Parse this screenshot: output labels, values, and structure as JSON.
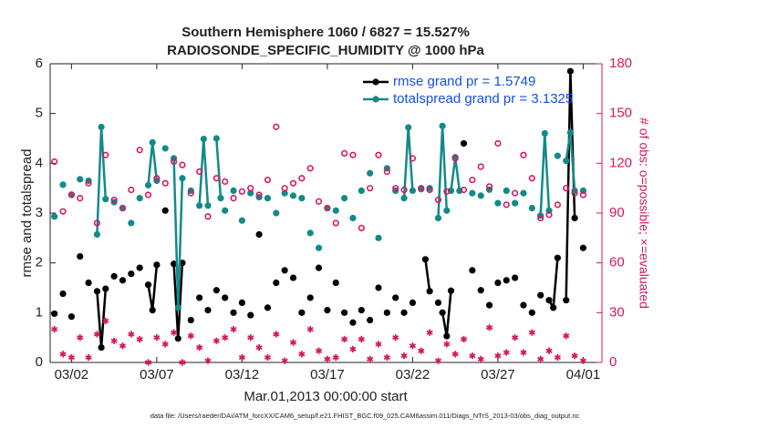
{
  "chart_data": {
    "type": "scatter",
    "title": "Southern Hemisphere 1060 / 6827 = 15.527%",
    "subtitle": "RADIOSONDE_SPECIFIC_HUMIDITY @ 1000 hPa",
    "x_label": "Mar.01,2013 00:00:00 start",
    "y_label": "rmse and totalspread",
    "y2_label": "# of obs: o=possible; ×=evaluated",
    "footer": "data file: /Users/raeder/DAI/ATM_forcXX/CAM6_setup/f.e21.FHIST_BGC.f09_025.CAM6assim.011/Diags_NTrS_2013-03/obs_diag_output.nc",
    "xlim": [
      -0.25,
      32.1
    ],
    "xticks": [
      {
        "value": 1,
        "label": "03/02"
      },
      {
        "value": 6,
        "label": "03/07"
      },
      {
        "value": 11,
        "label": "03/12"
      },
      {
        "value": 16,
        "label": "03/17"
      },
      {
        "value": 21,
        "label": "03/22"
      },
      {
        "value": 26,
        "label": "03/27"
      },
      {
        "value": 31,
        "label": "04/01"
      }
    ],
    "ylim": [
      0,
      6
    ],
    "yticks": [
      0,
      1,
      2,
      3,
      4,
      5,
      6
    ],
    "y2lim": [
      0,
      180
    ],
    "y2ticks": [
      0,
      30,
      60,
      90,
      120,
      150,
      180
    ],
    "legend": "upper right",
    "x": [
      0,
      0.5,
      1,
      1.5,
      2,
      2.5,
      3,
      3.5,
      4,
      4.5,
      5,
      5.5,
      6,
      6.5,
      7,
      7.5,
      8,
      8.5,
      9,
      9.5,
      10,
      10.5,
      11,
      11.5,
      12,
      12.5,
      13,
      13.5,
      14,
      14.5,
      15,
      15.5,
      16,
      16.5,
      17,
      17.5,
      18,
      18.5,
      19,
      19.5,
      20,
      20.5,
      21,
      21.5,
      22,
      22.5,
      23,
      23.5,
      24,
      24.5,
      25,
      25.5,
      26,
      26.5,
      27,
      27.5,
      28,
      28.5,
      29,
      29.5,
      30,
      30.5,
      31
    ],
    "series": [
      {
        "name": "rmse grand pr = 1.5749",
        "color": "#000000",
        "marker": "dot",
        "line": true,
        "x": [
          0,
          null,
          0.5,
          null,
          1,
          null,
          1.5,
          null,
          2,
          null,
          2.5,
          2.75,
          3,
          null,
          3.5,
          null,
          4,
          null,
          4.5,
          null,
          5,
          null,
          5.5,
          5.75,
          6,
          null,
          6.5,
          null,
          7,
          7.25,
          7.5,
          null,
          8,
          null,
          8.5,
          null,
          9,
          null,
          9.5,
          null,
          10,
          null,
          10.5,
          null,
          11,
          null,
          11.5,
          null,
          12,
          null,
          12.5,
          null,
          13,
          null,
          13.5,
          null,
          14,
          null,
          14.5,
          null,
          15,
          null,
          15.5,
          null,
          16,
          null,
          16.5,
          null,
          17,
          null,
          17.5,
          null,
          18,
          null,
          18.5,
          null,
          19,
          null,
          19.5,
          null,
          20,
          null,
          20.5,
          null,
          21,
          null,
          21.75,
          22,
          null,
          22.5,
          null,
          22.75,
          23,
          23.25,
          null,
          24,
          null,
          24.5,
          null,
          25,
          null,
          25.5,
          null,
          26,
          null,
          26.5,
          null,
          27,
          null,
          27.5,
          null,
          28,
          null,
          28.5,
          null,
          29,
          29.25,
          29.5,
          null,
          30,
          30.25,
          30.5,
          null,
          31
        ],
        "values": [
          0.98,
          null,
          1.38,
          null,
          0.92,
          null,
          2.13,
          null,
          1.6,
          null,
          1.43,
          0.3,
          1.48,
          null,
          1.73,
          null,
          1.65,
          null,
          1.78,
          null,
          1.9,
          null,
          1.56,
          1.05,
          1.96,
          null,
          3.05,
          null,
          1.98,
          0.48,
          2.0,
          null,
          0.85,
          null,
          1.3,
          null,
          1.05,
          null,
          1.45,
          null,
          1.3,
          null,
          1.0,
          null,
          1.2,
          null,
          0.95,
          null,
          2.57,
          null,
          1.1,
          null,
          1.6,
          null,
          1.85,
          null,
          1.7,
          null,
          1.0,
          null,
          1.3,
          null,
          1.9,
          null,
          1.05,
          null,
          1.6,
          null,
          1.0,
          null,
          0.8,
          null,
          1.05,
          null,
          0.85,
          null,
          1.5,
          null,
          1.0,
          null,
          1.3,
          null,
          1.0,
          null,
          1.2,
          null,
          2.07,
          1.43,
          null,
          1.2,
          null,
          1.0,
          0.53,
          1.44,
          null,
          4.4,
          null,
          1.85,
          null,
          1.45,
          null,
          1.15,
          null,
          1.6,
          null,
          1.65,
          null,
          1.7,
          null,
          1.15,
          null,
          1.0,
          null,
          1.35,
          null,
          1.25,
          1.1,
          2.1,
          null,
          1.25,
          5.85,
          2.9,
          null,
          2.3
        ]
      },
      {
        "name": "totalspread grand pr = 3.1325",
        "color": "#138a8a",
        "marker": "dot",
        "line": true,
        "x": [
          0,
          null,
          0.5,
          null,
          1,
          null,
          1.5,
          null,
          2,
          null,
          2.5,
          2.75,
          3,
          null,
          3.5,
          null,
          4,
          null,
          4.5,
          null,
          5,
          null,
          5.5,
          5.75,
          6,
          null,
          6.5,
          null,
          7,
          7.25,
          7.5,
          null,
          8,
          null,
          8.5,
          8.75,
          9,
          null,
          9.5,
          9.75,
          null,
          10,
          null,
          10.5,
          null,
          11,
          null,
          11.5,
          null,
          12,
          null,
          12.5,
          null,
          13,
          null,
          13.5,
          null,
          14,
          null,
          14.5,
          null,
          15,
          null,
          15.5,
          null,
          16,
          null,
          16.5,
          null,
          17,
          null,
          17.5,
          null,
          18,
          null,
          18.5,
          null,
          19,
          null,
          19.5,
          null,
          20,
          null,
          20.5,
          20.75,
          21,
          null,
          21.5,
          null,
          22,
          null,
          22.5,
          22.75,
          23,
          null,
          23.25,
          23.5,
          23.75,
          null,
          24.5,
          null,
          25,
          null,
          25.5,
          null,
          26,
          null,
          26.5,
          null,
          27,
          null,
          27.5,
          null,
          28,
          null,
          28.5,
          28.75,
          29,
          null,
          29.5,
          null,
          30,
          30.25,
          30.5,
          null,
          31
        ],
        "values": [
          2.93,
          null,
          3.57,
          null,
          3.37,
          null,
          3.68,
          null,
          3.65,
          null,
          2.57,
          4.73,
          3.28,
          null,
          3.22,
          null,
          3.1,
          null,
          2.8,
          null,
          3.3,
          null,
          3.56,
          4.42,
          3.65,
          null,
          4.3,
          null,
          4.1,
          1.1,
          3.7,
          null,
          3.45,
          null,
          3.15,
          4.49,
          3.15,
          null,
          4.5,
          3.3,
          null,
          3.05,
          null,
          3.45,
          null,
          2.85,
          null,
          3.4,
          null,
          3.32,
          null,
          3.3,
          null,
          3.0,
          null,
          3.4,
          null,
          3.35,
          null,
          3.3,
          null,
          2.6,
          null,
          2.3,
          null,
          3.1,
          null,
          3.05,
          null,
          3.3,
          null,
          2.9,
          null,
          3.45,
          null,
          3.8,
          null,
          2.5,
          null,
          3.9,
          null,
          3.45,
          null,
          3.3,
          4.72,
          3.45,
          null,
          3.48,
          null,
          3.5,
          null,
          2.9,
          4.75,
          3.05,
          null,
          3.45,
          4.12,
          3.45,
          null,
          3.4,
          null,
          3.35,
          null,
          3.47,
          null,
          3.2,
          null,
          3.45,
          null,
          3.2,
          null,
          3.4,
          null,
          3.1,
          null,
          2.95,
          4.6,
          3.05,
          null,
          4.15,
          null,
          4.05,
          4.62,
          3.45,
          null,
          3.45
        ]
      },
      {
        "name": "possible",
        "color": "#d6175f",
        "marker": "circle",
        "axis": "y2",
        "values": [
          121,
          91,
          101,
          99,
          108,
          84,
          125,
          98,
          93,
          104,
          128,
          101,
          111,
          108,
          121,
          119,
          102,
          115,
          88,
          111,
          109,
          99,
          103,
          105,
          101,
          110,
          142,
          105,
          108,
          111,
          117,
          97,
          93,
          84,
          126,
          125,
          81,
          105,
          125,
          115,
          105,
          104,
          123,
          105,
          104,
          98,
          103,
          123,
          104,
          110,
          118,
          106,
          132,
          95,
          102,
          125,
          111,
          87,
          89,
          95,
          105,
          102,
          101
        ]
      },
      {
        "name": "evaluated",
        "color": "#d6175f",
        "marker": "star",
        "axis": "y2",
        "values": [
          20,
          5,
          3,
          15,
          3,
          17,
          25,
          13,
          10,
          17,
          14,
          0,
          15,
          11,
          18,
          0,
          16,
          9,
          1,
          13,
          15,
          20,
          3,
          15,
          9,
          3,
          17,
          1,
          12,
          5,
          20,
          7,
          2,
          3,
          14,
          8,
          14,
          2,
          11,
          3,
          15,
          4,
          10,
          7,
          18,
          1,
          11,
          5,
          14,
          4,
          2,
          21,
          4,
          6,
          15,
          6,
          18,
          2,
          7,
          3,
          16,
          4,
          1
        ]
      }
    ]
  }
}
